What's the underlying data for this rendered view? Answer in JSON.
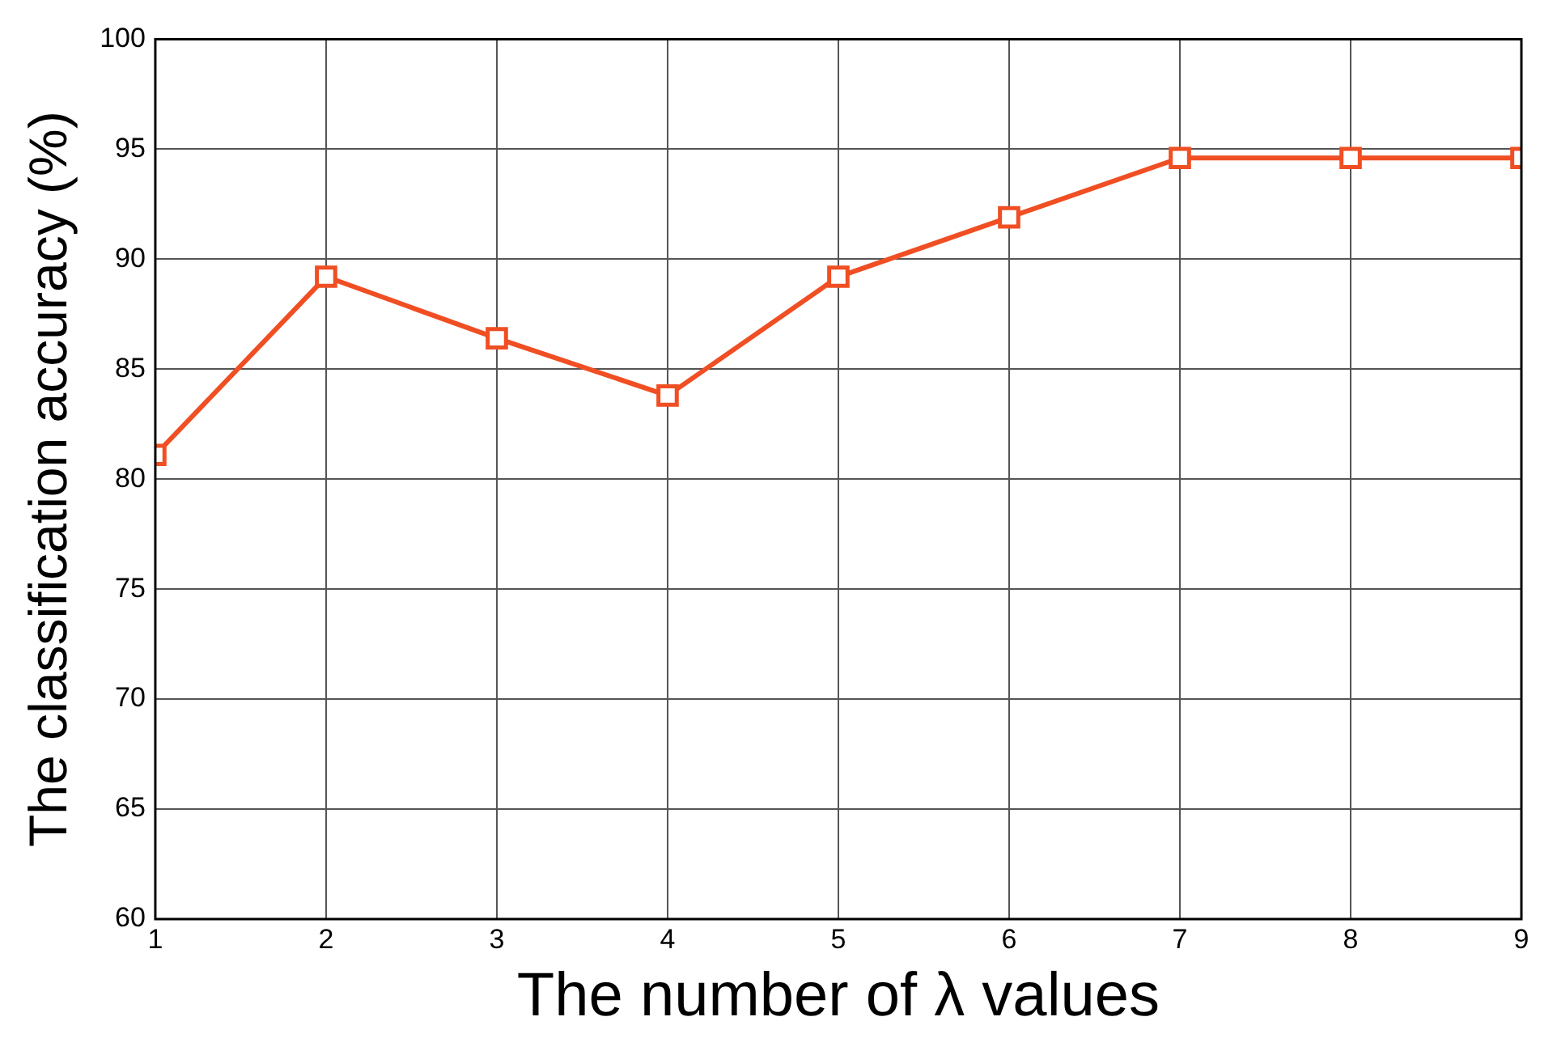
{
  "chart_data": {
    "type": "line",
    "xlabel": "The number of λ values",
    "ylabel": "The classification accuracy (%)",
    "x": [
      1,
      2,
      3,
      4,
      5,
      6,
      7,
      8,
      9
    ],
    "series": [
      {
        "color": "#f04e23",
        "values": [
          81.1,
          89.2,
          86.4,
          83.8,
          89.2,
          91.9,
          94.6,
          94.6,
          94.6
        ]
      }
    ],
    "xlim": [
      1,
      9
    ],
    "xticks": [
      1,
      2,
      3,
      4,
      5,
      6,
      7,
      8,
      9
    ],
    "ylim": [
      60,
      100
    ],
    "yticks": [
      60,
      65,
      70,
      75,
      80,
      85,
      90,
      95,
      100
    ],
    "grid": true,
    "legend": false,
    "marker": "square",
    "line_style": "solid"
  }
}
